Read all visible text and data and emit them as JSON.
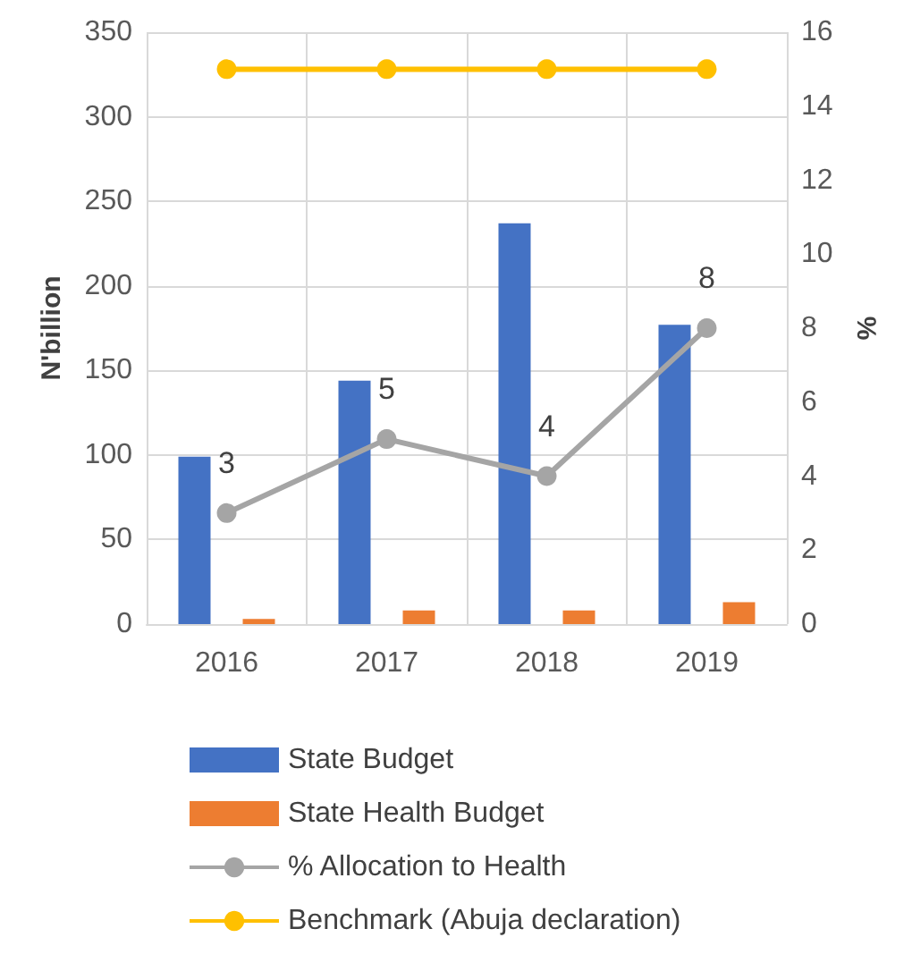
{
  "chart_data": {
    "type": "bar",
    "ylabel": "N'billion",
    "y2label": "%",
    "categories": [
      "2016",
      "2017",
      "2018",
      "2019"
    ],
    "series": [
      {
        "name": "State Budget",
        "color": "#4472c4",
        "values": [
          99,
          144,
          237,
          177
        ]
      },
      {
        "name": "State Health Budget",
        "color": "#ed7d31",
        "values": [
          3,
          8,
          8,
          13
        ]
      },
      {
        "name": "% Allocation to Health",
        "type": "line",
        "axis": "y2",
        "color": "#a5a5a5",
        "values": [
          3,
          5,
          4,
          8
        ],
        "value_labels": [
          "3",
          "5",
          "4",
          "8"
        ]
      },
      {
        "name": "Benchmark (Abuja declaration)",
        "type": "line",
        "axis": "y2",
        "color": "#ffc000",
        "values": [
          15,
          15,
          15,
          15
        ]
      }
    ],
    "ylim": [
      0,
      350
    ],
    "yticks": [
      0,
      50,
      100,
      150,
      200,
      250,
      300,
      350
    ],
    "y2lim": [
      0,
      16
    ],
    "y2ticks": [
      0,
      2,
      4,
      6,
      8,
      10,
      12,
      14,
      16
    ],
    "grid": true,
    "legend": "bottom",
    "marker": "circle",
    "line_style": "solid"
  }
}
